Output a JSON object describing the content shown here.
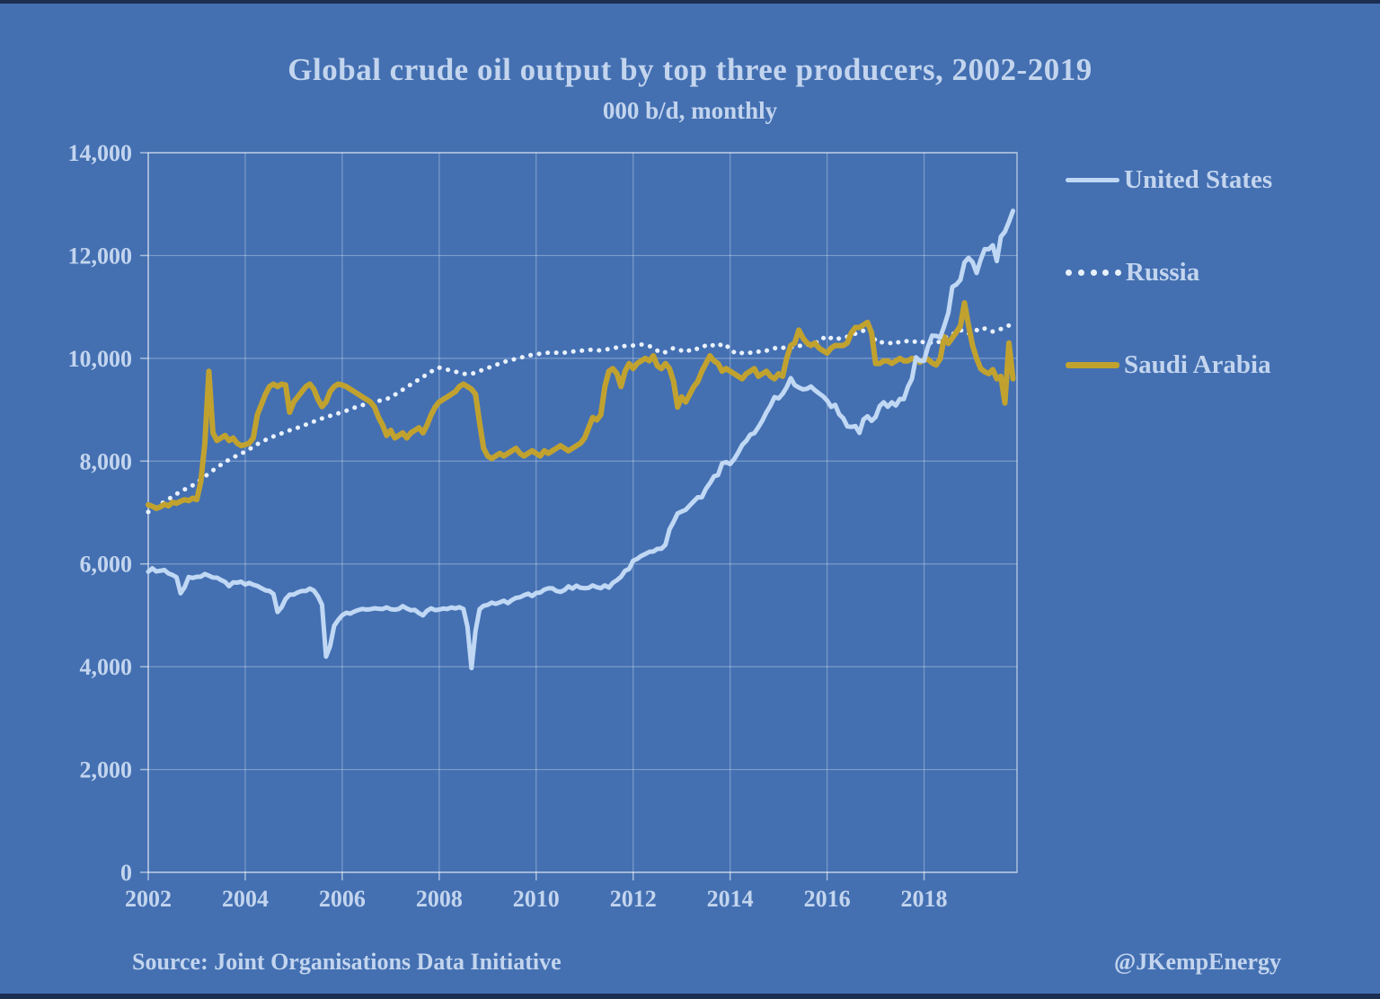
{
  "page": {
    "background": "#4470b2",
    "edge_color": "#1c2e52",
    "text_color": "#c3d5ee",
    "gridline_color": "rgba(255,255,255,0.30)",
    "spine_color": "rgba(255,255,255,0.55)"
  },
  "title": "Global crude oil output by top three producers, 2002-2019",
  "subtitle": "000 b/d, monthly",
  "footer": {
    "source": "Source: Joint Organisations Data Initiative",
    "credit": "@JKempEnergy"
  },
  "chart_data": {
    "type": "line",
    "title": "Global crude oil output by top three producers, 2002-2019",
    "subtitle": "000 b/d, monthly",
    "xlabel": "",
    "ylabel": "",
    "grid": true,
    "legend_position": "right",
    "xlim": [
      2002,
      2019.917
    ],
    "ylim": [
      0,
      14000
    ],
    "x_ticks": [
      {
        "v": 2002,
        "label": "2002"
      },
      {
        "v": 2004,
        "label": "2004"
      },
      {
        "v": 2006,
        "label": "2006"
      },
      {
        "v": 2008,
        "label": "2008"
      },
      {
        "v": 2010,
        "label": "2010"
      },
      {
        "v": 2012,
        "label": "2012"
      },
      {
        "v": 2014,
        "label": "2014"
      },
      {
        "v": 2016,
        "label": "2016"
      },
      {
        "v": 2018,
        "label": "2018"
      }
    ],
    "y_ticks": [
      {
        "v": 0,
        "label": "0"
      },
      {
        "v": 2000,
        "label": "2,000"
      },
      {
        "v": 4000,
        "label": "4,000"
      },
      {
        "v": 6000,
        "label": "6,000"
      },
      {
        "v": 8000,
        "label": "8,000"
      },
      {
        "v": 10000,
        "label": "10,000"
      },
      {
        "v": 12000,
        "label": "12,000"
      },
      {
        "v": 14000,
        "label": "14,000"
      }
    ],
    "x_monthly_start": "2002-01",
    "x_months_per_point": 1,
    "series": [
      {
        "name": "United States",
        "style": "solid",
        "color": "#c0d8f4",
        "width": 5,
        "values": [
          5848,
          5915,
          5854,
          5868,
          5882,
          5815,
          5785,
          5740,
          5428,
          5547,
          5745,
          5727,
          5748,
          5752,
          5805,
          5771,
          5734,
          5732,
          5688,
          5651,
          5567,
          5640,
          5637,
          5654,
          5600,
          5632,
          5594,
          5572,
          5528,
          5486,
          5475,
          5415,
          5065,
          5156,
          5318,
          5402,
          5405,
          5447,
          5472,
          5474,
          5521,
          5480,
          5370,
          5206,
          4197,
          4400,
          4795,
          4910,
          5000,
          5050,
          5034,
          5074,
          5103,
          5125,
          5112,
          5119,
          5136,
          5128,
          5123,
          5155,
          5120,
          5111,
          5122,
          5179,
          5133,
          5098,
          5105,
          5042,
          4999,
          5088,
          5135,
          5102,
          5112,
          5131,
          5122,
          5153,
          5135,
          5158,
          5123,
          4780,
          3974,
          4700,
          5118,
          5185,
          5203,
          5247,
          5225,
          5252,
          5283,
          5236,
          5297,
          5340,
          5352,
          5392,
          5422,
          5375,
          5435,
          5442,
          5498,
          5527,
          5525,
          5475,
          5457,
          5492,
          5564,
          5519,
          5577,
          5536,
          5528,
          5534,
          5583,
          5548,
          5529,
          5583,
          5539,
          5633,
          5684,
          5751,
          5865,
          5903,
          6063,
          6098,
          6156,
          6192,
          6235,
          6241,
          6292,
          6295,
          6374,
          6674,
          6818,
          6983,
          7019,
          7052,
          7136,
          7219,
          7297,
          7296,
          7462,
          7572,
          7702,
          7728,
          7956,
          7981,
          7942,
          8038,
          8166,
          8315,
          8394,
          8516,
          8543,
          8661,
          8791,
          8950,
          9080,
          9246,
          9220,
          9308,
          9439,
          9614,
          9479,
          9433,
          9397,
          9407,
          9452,
          9379,
          9318,
          9262,
          9179,
          9056,
          9096,
          8908,
          8836,
          8674,
          8666,
          8681,
          8549,
          8810,
          8872,
          8783,
          8860,
          9070,
          9144,
          9057,
          9142,
          9081,
          9209,
          9207,
          9441,
          9599,
          10021,
          9949,
          9952,
          10232,
          10442,
          10436,
          10406,
          10631,
          10880,
          11388,
          11438,
          11527,
          11866,
          11955,
          11871,
          11660,
          11917,
          12123,
          12123,
          12200,
          11892,
          12365,
          12463,
          12655,
          12870
        ]
      },
      {
        "name": "Russia",
        "style": "dotted",
        "color": "#e9f1fb",
        "width": 5,
        "values": [
          7010,
          7060,
          7110,
          7160,
          7210,
          7260,
          7310,
          7360,
          7410,
          7450,
          7490,
          7530,
          7580,
          7640,
          7700,
          7760,
          7820,
          7880,
          7930,
          7980,
          8030,
          8070,
          8110,
          8150,
          8180,
          8230,
          8280,
          8330,
          8370,
          8410,
          8450,
          8480,
          8510,
          8540,
          8570,
          8600,
          8620,
          8650,
          8680,
          8710,
          8740,
          8770,
          8800,
          8830,
          8850,
          8880,
          8900,
          8930,
          8950,
          8980,
          9010,
          9040,
          9060,
          9090,
          9110,
          9130,
          9150,
          9170,
          9190,
          9210,
          9240,
          9290,
          9340,
          9390,
          9440,
          9490,
          9540,
          9590,
          9640,
          9690,
          9740,
          9790,
          9820,
          9800,
          9780,
          9760,
          9740,
          9720,
          9700,
          9690,
          9700,
          9720,
          9750,
          9790,
          9810,
          9840,
          9870,
          9900,
          9930,
          9950,
          9970,
          9990,
          10010,
          10030,
          10050,
          10070,
          10080,
          10090,
          10100,
          10110,
          10100,
          10110,
          10120,
          10110,
          10120,
          10130,
          10140,
          10150,
          10150,
          10160,
          10170,
          10160,
          10150,
          10170,
          10180,
          10200,
          10210,
          10230,
          10240,
          10250,
          10250,
          10260,
          10270,
          10250,
          10240,
          10200,
          10150,
          10100,
          10120,
          10160,
          10200,
          10180,
          10150,
          10120,
          10160,
          10200,
          10180,
          10220,
          10250,
          10280,
          10240,
          10280,
          10250,
          10270,
          10150,
          10120,
          10140,
          10100,
          10090,
          10110,
          10100,
          10130,
          10120,
          10150,
          10170,
          10200,
          10180,
          10200,
          10230,
          10210,
          10240,
          10250,
          10230,
          10260,
          10280,
          10300,
          10330,
          10400,
          10350,
          10400,
          10420,
          10380,
          10400,
          10420,
          10450,
          10480,
          10500,
          10540,
          10560,
          10500,
          10330,
          10300,
          10320,
          10310,
          10290,
          10330,
          10300,
          10320,
          10340,
          10310,
          10330,
          10350,
          10300,
          10280,
          10320,
          10300,
          10330,
          10380,
          10450,
          10470,
          10500,
          10550,
          10520,
          10480,
          10500,
          10550,
          10530,
          10580,
          10560,
          10520,
          10540,
          10570,
          10600,
          10640,
          10620
        ]
      },
      {
        "name": "Saudi Arabia",
        "style": "solid",
        "color": "#c1a22f",
        "width": 6,
        "values": [
          7150,
          7120,
          7080,
          7110,
          7160,
          7130,
          7200,
          7180,
          7220,
          7250,
          7230,
          7280,
          7250,
          7600,
          8350,
          9750,
          8550,
          8400,
          8450,
          8500,
          8400,
          8450,
          8350,
          8300,
          8320,
          8350,
          8450,
          8900,
          9100,
          9300,
          9450,
          9500,
          9450,
          9500,
          9480,
          8950,
          9150,
          9250,
          9350,
          9450,
          9500,
          9400,
          9200,
          9060,
          9150,
          9350,
          9450,
          9500,
          9480,
          9450,
          9400,
          9350,
          9300,
          9250,
          9200,
          9150,
          9050,
          8850,
          8700,
          8500,
          8600,
          8450,
          8500,
          8550,
          8450,
          8550,
          8600,
          8650,
          8550,
          8700,
          8900,
          9050,
          9150,
          9200,
          9250,
          9300,
          9350,
          9450,
          9500,
          9450,
          9400,
          9300,
          8750,
          8250,
          8100,
          8050,
          8100,
          8150,
          8100,
          8150,
          8200,
          8250,
          8150,
          8100,
          8150,
          8200,
          8150,
          8100,
          8200,
          8150,
          8200,
          8250,
          8300,
          8250,
          8200,
          8250,
          8300,
          8350,
          8450,
          8650,
          8850,
          8800,
          8900,
          9450,
          9750,
          9800,
          9700,
          9450,
          9750,
          9900,
          9800,
          9900,
          9950,
          10000,
          9950,
          10050,
          9850,
          9800,
          9900,
          9800,
          9550,
          9050,
          9250,
          9150,
          9300,
          9450,
          9550,
          9750,
          9900,
          10050,
          9950,
          9900,
          9750,
          9800,
          9750,
          9700,
          9650,
          9600,
          9700,
          9750,
          9800,
          9650,
          9700,
          9750,
          9650,
          9600,
          9700,
          9650,
          10000,
          10250,
          10300,
          10550,
          10400,
          10300,
          10250,
          10300,
          10200,
          10150,
          10100,
          10200,
          10250,
          10250,
          10250,
          10300,
          10500,
          10600,
          10600,
          10650,
          10700,
          10500,
          9900,
          9900,
          9950,
          9950,
          9900,
          9950,
          10000,
          9950,
          9950,
          10000,
          9980,
          9920,
          9980,
          9980,
          9910,
          9870,
          9990,
          10420,
          10290,
          10400,
          10510,
          10630,
          11080,
          10640,
          10250,
          10000,
          9800,
          9740,
          9700,
          9780,
          9600,
          9650,
          9130,
          10300,
          9600
        ]
      }
    ]
  }
}
